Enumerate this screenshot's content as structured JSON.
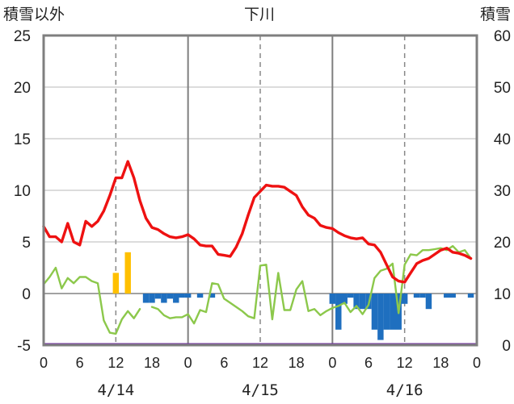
{
  "chart_data": {
    "type": "line",
    "title": "下川",
    "left_axis_label": "積雪以外",
    "right_axis_label": "積雪",
    "left_ylim": [
      -5,
      25
    ],
    "left_ticks": [
      "25",
      "20",
      "15",
      "10",
      "5",
      "0",
      "-5"
    ],
    "right_ylim": [
      0,
      60
    ],
    "right_ticks": [
      "60",
      "50",
      "40",
      "30",
      "20",
      "10",
      "0"
    ],
    "x_hours_range": [
      0,
      72
    ],
    "x_tick_labels": [
      "0",
      "6",
      "12",
      "18",
      "0",
      "6",
      "12",
      "18",
      "0",
      "6",
      "12",
      "18",
      "0"
    ],
    "dates": [
      "4/14",
      "4/15",
      "4/16"
    ],
    "colors": {
      "temperature": "#ee1111",
      "secondary_line": "#8cc84b",
      "precip_bars": "#ffc000",
      "snow_change_bars": "#1f6fbf",
      "snow_depth": "#7030a0",
      "frame": "#7f7f7f"
    },
    "series": [
      {
        "name": "temperature",
        "x": [
          0,
          1,
          2,
          3,
          4,
          5,
          6,
          7,
          8,
          9,
          10,
          11,
          12,
          13,
          14,
          15,
          16,
          17,
          18,
          19,
          20,
          21,
          22,
          23,
          24,
          25,
          26,
          27,
          28,
          29,
          30,
          31,
          32,
          33,
          34,
          35,
          36,
          37,
          38,
          39,
          40,
          41,
          42,
          43,
          44,
          45,
          46,
          47,
          48,
          49,
          50,
          51,
          52,
          53,
          54,
          55,
          56,
          57,
          58,
          59,
          60,
          61,
          62,
          63,
          64,
          65,
          66,
          67,
          68,
          69,
          70,
          71
        ],
        "values": [
          6.5,
          5.5,
          5.5,
          5.0,
          6.8,
          5.0,
          4.7,
          7.0,
          6.5,
          7.0,
          8.0,
          9.5,
          11.2,
          11.2,
          12.8,
          11.2,
          9.0,
          7.3,
          6.4,
          6.2,
          5.8,
          5.5,
          5.4,
          5.5,
          5.7,
          5.3,
          4.7,
          4.6,
          4.6,
          3.8,
          3.7,
          3.6,
          4.5,
          5.8,
          7.6,
          9.3,
          9.9,
          10.5,
          10.4,
          10.4,
          10.3,
          9.9,
          9.5,
          8.4,
          7.6,
          7.3,
          6.6,
          6.4,
          6.3,
          5.9,
          5.6,
          5.4,
          5.3,
          5.4,
          4.8,
          4.7,
          4.0,
          2.8,
          1.6,
          1.2,
          1.1,
          2.0,
          2.9,
          3.2,
          3.4,
          3.8,
          4.2,
          4.4,
          4.0,
          3.9,
          3.7,
          3.4
        ]
      },
      {
        "name": "secondary_line",
        "x": [
          0,
          1,
          2,
          3,
          4,
          5,
          6,
          7,
          8,
          9,
          10,
          11,
          12,
          13,
          14,
          15,
          16,
          17,
          18,
          19,
          20,
          21,
          22,
          23,
          24,
          25,
          26,
          27,
          28,
          29,
          30,
          31,
          32,
          33,
          34,
          35,
          36,
          37,
          38,
          39,
          40,
          41,
          42,
          43,
          44,
          45,
          46,
          47,
          48,
          49,
          50,
          51,
          52,
          53,
          54,
          55,
          56,
          57,
          58,
          59,
          60,
          61,
          62,
          63,
          64,
          65,
          66,
          67,
          68,
          69,
          70,
          71
        ],
        "values": [
          0.9,
          1.6,
          2.5,
          0.5,
          1.5,
          1.0,
          1.6,
          1.6,
          1.2,
          1.0,
          -2.6,
          -3.8,
          -3.9,
          -2.5,
          -1.7,
          -2.4,
          -1.5,
          null,
          -1.3,
          -1.5,
          -2.1,
          -2.4,
          -2.3,
          -2.3,
          -2.0,
          -2.9,
          -1.6,
          -1.8,
          1.0,
          0.9,
          -0.5,
          -0.9,
          -1.3,
          -1.7,
          -2.2,
          -2.4,
          2.7,
          2.8,
          -2.5,
          2.0,
          -1.6,
          -1.6,
          0.4,
          1.2,
          -1.7,
          -1.5,
          -2.1,
          -1.7,
          -1.4,
          -1.2,
          -0.9,
          -1.8,
          -1.2,
          -2.0,
          -1.1,
          1.5,
          2.2,
          2.4,
          2.9,
          -1.9,
          2.8,
          3.8,
          3.7,
          4.2,
          4.2,
          4.3,
          4.4,
          4.2,
          4.6,
          4.0,
          4.2,
          3.4
        ]
      },
      {
        "name": "precip_bars",
        "x": [
          12,
          14
        ],
        "values": [
          2.0,
          4.0
        ]
      },
      {
        "name": "snow_change_bars",
        "x": [
          17,
          18,
          19,
          20,
          21,
          22,
          23,
          24,
          26,
          28,
          48,
          49,
          50,
          51,
          52,
          53,
          54,
          55,
          56,
          57,
          58,
          59,
          60,
          62,
          63,
          64,
          67,
          68,
          71
        ],
        "values": [
          -0.9,
          -0.9,
          -0.5,
          -0.9,
          -0.5,
          -0.9,
          -0.4,
          -0.4,
          -0.4,
          -0.4,
          -1.0,
          -3.5,
          -1.0,
          -0.4,
          -1.5,
          -1.5,
          -1.5,
          -3.5,
          -4.5,
          -3.5,
          -3.5,
          -3.5,
          -1.0,
          -0.4,
          -0.4,
          -1.5,
          -0.4,
          -0.4,
          -0.4
        ]
      },
      {
        "name": "snow_depth",
        "x": [
          0,
          72
        ],
        "values": [
          0,
          0
        ]
      }
    ]
  }
}
